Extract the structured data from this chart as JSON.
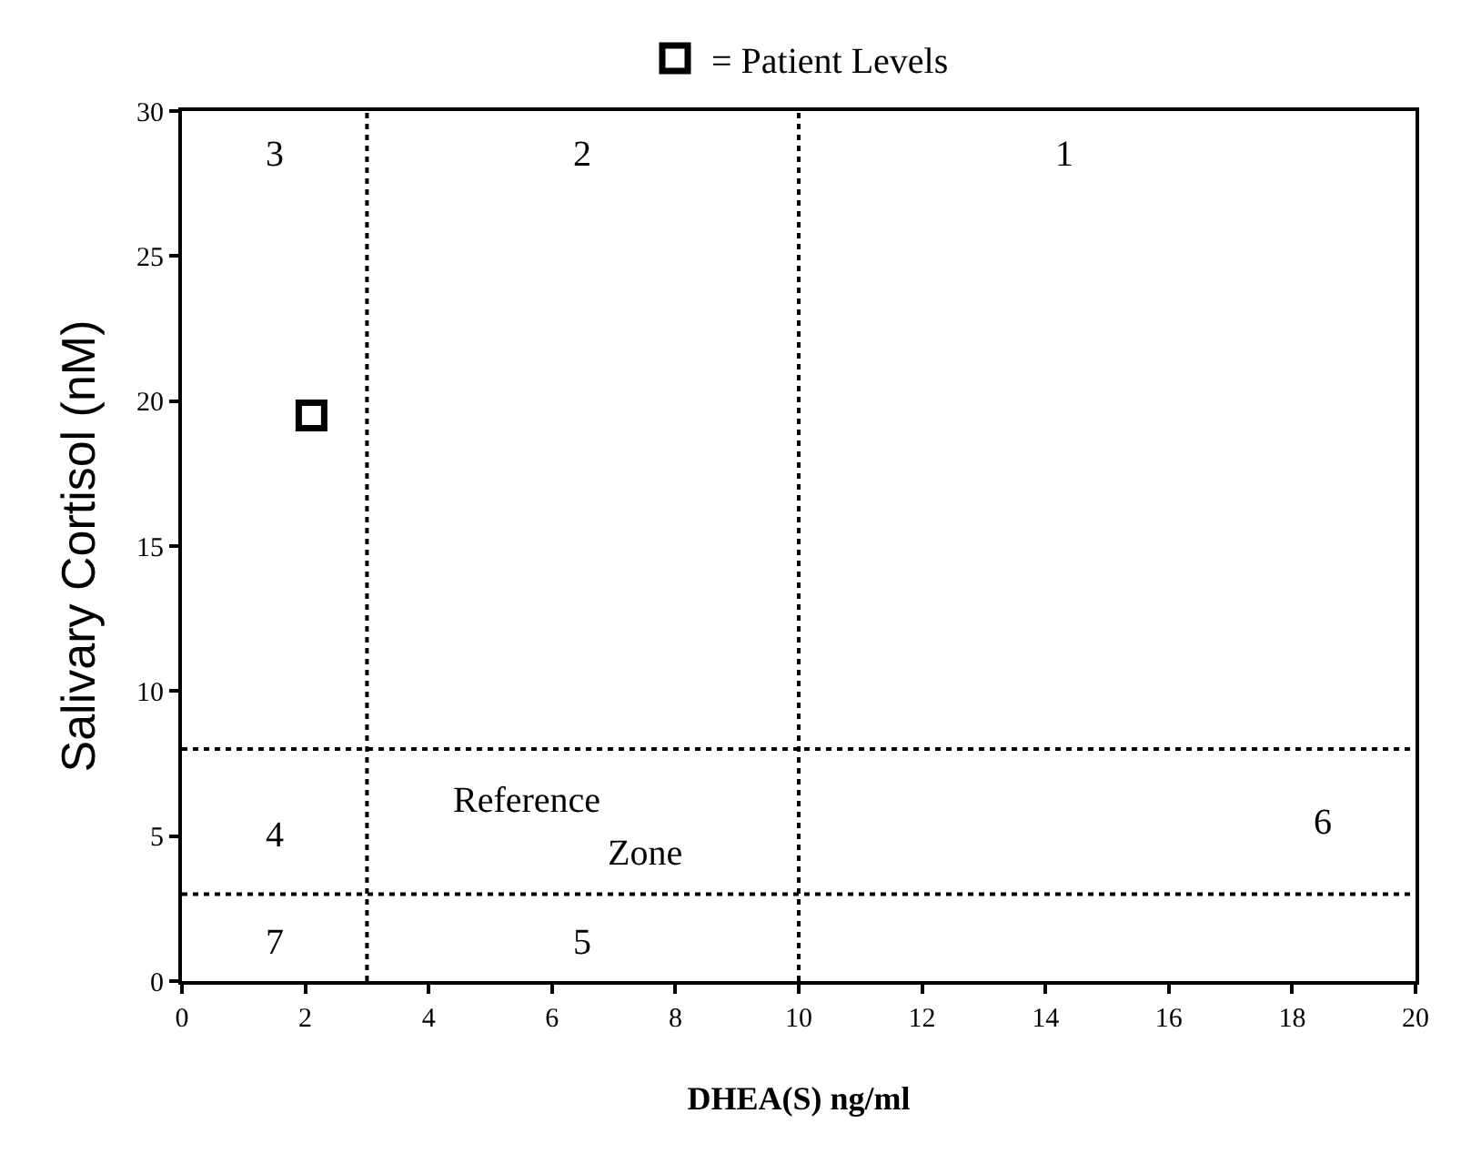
{
  "chart_data": {
    "type": "scatter",
    "xlabel": "DHEA(S) ng/ml",
    "ylabel": "Salivary Cortisol (nM)",
    "series": [
      {
        "name": "= Patient Levels",
        "color": "#000000",
        "x": [
          2.1
        ],
        "values": [
          19.5
        ]
      }
    ],
    "marker": "square",
    "legend": "top",
    "xlim": [
      0,
      20
    ],
    "xticks": [
      0,
      2,
      4,
      6,
      8,
      10,
      12,
      14,
      16,
      18,
      20
    ],
    "ylim": [
      0,
      30
    ],
    "yticks": [
      0,
      5,
      10,
      15,
      20,
      25,
      30
    ],
    "ref_lines": [
      {
        "axis": "x",
        "value": 3,
        "label": null,
        "color": "#000000",
        "line_style": "dotted"
      },
      {
        "axis": "x",
        "value": 10,
        "label": null,
        "color": "#000000",
        "line_style": "dotted"
      },
      {
        "axis": "y",
        "value": 8,
        "label": null,
        "color": "#000000",
        "line_style": "dotted"
      },
      {
        "axis": "y",
        "value": 3,
        "label": null,
        "color": "#000000",
        "line_style": "dotted"
      }
    ],
    "annotations": [
      "1",
      "2",
      "3",
      "4",
      "Reference",
      "Zone",
      "6",
      "7",
      "5"
    ]
  }
}
